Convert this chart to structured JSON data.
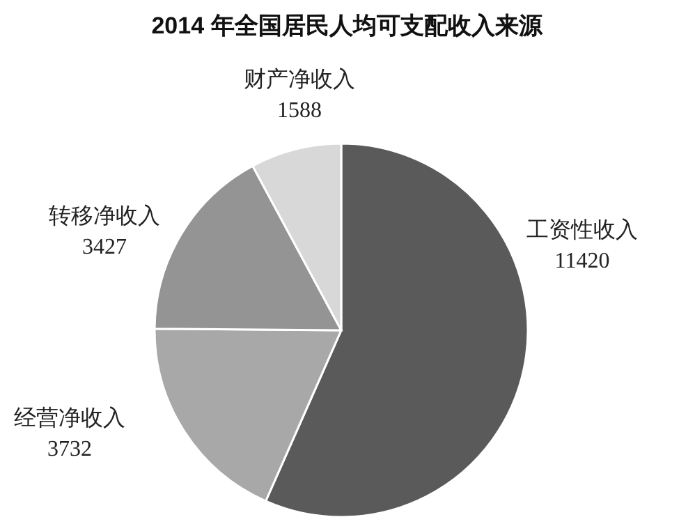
{
  "chart_data": {
    "type": "pie",
    "title": "2014 年全国居民人均可支配收入来源",
    "categories": [
      "工资性收入",
      "经营净收入",
      "转移净收入",
      "财产净收入"
    ],
    "values": [
      11420,
      3732,
      3427,
      1588
    ],
    "colors": [
      "#5a5a5a",
      "#a8a8a8",
      "#949494",
      "#d8d8d8"
    ],
    "data_labels": true
  }
}
